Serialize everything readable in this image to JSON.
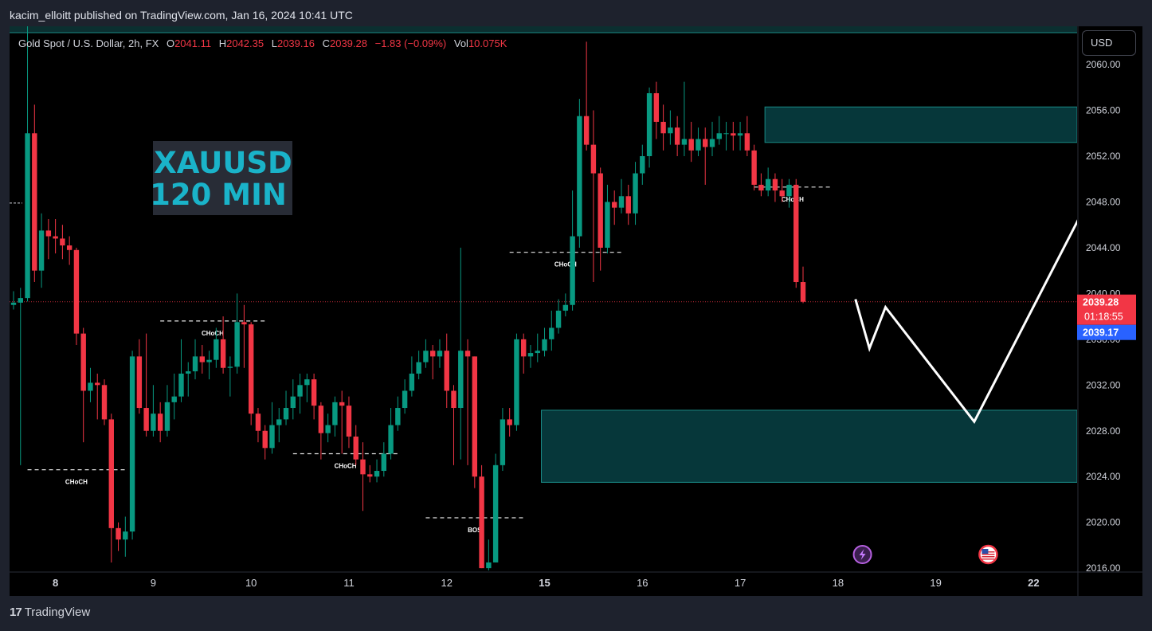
{
  "header": {
    "published_text": "kacim_elloitt published on TradingView.com, Jan 16, 2024 10:41 UTC"
  },
  "legend": {
    "symbol": "Gold Spot / U.S. Dollar, 2h, FX",
    "open_label": "O",
    "open": "2041.11",
    "high_label": "H",
    "high": "2042.35",
    "low_label": "L",
    "low": "2039.16",
    "close_label": "C",
    "close": "2039.28",
    "change": "−1.83 (−0.09%)",
    "vol_label": "Vol",
    "vol": "10.075K"
  },
  "currency_button": "USD",
  "footer": {
    "logo": "17",
    "brand": "TradingView"
  },
  "colors": {
    "up": "#089981",
    "down": "#f23645",
    "zone_fill": "#06373a",
    "zone_border": "#1a8b86",
    "title_text": "#1ab3c9"
  },
  "chart_data": {
    "type": "candlestick",
    "title": "XAUUSD",
    "subtitle": "120 MIN",
    "y_ticks": [
      "2060.00",
      "2056.00",
      "2052.00",
      "2048.00",
      "2044.00",
      "2040.00",
      "2036.00",
      "2032.00",
      "2028.00",
      "2024.00",
      "2020.00",
      "2016.00"
    ],
    "y_tick_values": [
      2060,
      2056,
      2052,
      2048,
      2044,
      2040,
      2036,
      2032,
      2028,
      2024,
      2020,
      2016
    ],
    "ylim": [
      2015.8,
      2063
    ],
    "x_ticks": [
      {
        "label": "8",
        "bold": true,
        "index": 6
      },
      {
        "label": "9",
        "bold": false,
        "index": 20
      },
      {
        "label": "10",
        "bold": false,
        "index": 34
      },
      {
        "label": "11",
        "bold": false,
        "index": 48
      },
      {
        "label": "12",
        "bold": false,
        "index": 62
      },
      {
        "label": "15",
        "bold": true,
        "index": 76
      },
      {
        "label": "16",
        "bold": false,
        "index": 90
      },
      {
        "label": "17",
        "bold": false,
        "index": 104
      },
      {
        "label": "18",
        "bold": false,
        "index": 118
      },
      {
        "label": "19",
        "bold": false,
        "index": 132
      },
      {
        "label": "22",
        "bold": true,
        "index": 146
      }
    ],
    "price_label": {
      "value": 2039.28,
      "text": "2039.28",
      "countdown": "01:18:55",
      "bid": "2039.17"
    },
    "candles": [
      [
        2039.0,
        2039.2,
        2040.2,
        2038.6
      ],
      [
        2039.2,
        2039.6,
        2040.5,
        2025.0
      ],
      [
        2039.6,
        2054.0,
        2066.0,
        2039.3
      ],
      [
        2054.0,
        2042.0,
        2056.5,
        2041.0
      ],
      [
        2042.0,
        2045.5,
        2047.0,
        2040.5
      ],
      [
        2045.5,
        2045.0,
        2046.5,
        2043.0
      ],
      [
        2045.0,
        2044.8,
        2046.5,
        2043.5
      ],
      [
        2044.8,
        2044.2,
        2046.0,
        2043.0
      ],
      [
        2044.2,
        2043.8,
        2045.0,
        2042.5
      ],
      [
        2043.8,
        2036.5,
        2044.0,
        2035.5
      ],
      [
        2036.5,
        2031.5,
        2037.0,
        2027.0
      ],
      [
        2031.5,
        2032.2,
        2033.5,
        2030.5
      ],
      [
        2032.2,
        2032.0,
        2033.0,
        2029.0
      ],
      [
        2032.0,
        2029.0,
        2032.5,
        2028.5
      ],
      [
        2029.0,
        2019.5,
        2029.5,
        2016.5
      ],
      [
        2019.5,
        2018.5,
        2020.0,
        2017.5
      ],
      [
        2018.5,
        2019.2,
        2020.5,
        2017.0
      ],
      [
        2019.2,
        2034.5,
        2035.0,
        2018.5
      ],
      [
        2034.5,
        2030.0,
        2036.0,
        2029.5
      ],
      [
        2030.0,
        2028.0,
        2036.5,
        2027.5
      ],
      [
        2028.0,
        2029.5,
        2032.0,
        2027.5
      ],
      [
        2029.5,
        2028.0,
        2030.5,
        2027.0
      ],
      [
        2028.0,
        2030.5,
        2032.0,
        2027.5
      ],
      [
        2030.5,
        2031.0,
        2033.0,
        2029.0
      ],
      [
        2031.0,
        2033.0,
        2036.0,
        2030.5
      ],
      [
        2033.0,
        2033.2,
        2034.0,
        2031.0
      ],
      [
        2033.2,
        2034.5,
        2036.0,
        2032.5
      ],
      [
        2034.5,
        2034.0,
        2035.5,
        2033.0
      ],
      [
        2034.0,
        2034.2,
        2035.0,
        2032.5
      ],
      [
        2034.2,
        2036.0,
        2037.0,
        2033.5
      ],
      [
        2036.0,
        2033.5,
        2038.0,
        2033.0
      ],
      [
        2033.5,
        2033.6,
        2034.5,
        2031.0
      ],
      [
        2033.6,
        2037.5,
        2040.0,
        2033.0
      ],
      [
        2037.5,
        2037.3,
        2039.0,
        2033.5
      ],
      [
        2037.3,
        2029.5,
        2037.5,
        2028.5
      ],
      [
        2029.5,
        2028.0,
        2030.0,
        2027.0
      ],
      [
        2028.0,
        2026.5,
        2028.5,
        2025.5
      ],
      [
        2026.5,
        2028.5,
        2030.5,
        2026.0
      ],
      [
        2028.5,
        2029.0,
        2030.0,
        2027.0
      ],
      [
        2029.0,
        2030.0,
        2031.5,
        2028.5
      ],
      [
        2030.0,
        2031.0,
        2032.5,
        2029.0
      ],
      [
        2031.0,
        2032.0,
        2033.0,
        2029.5
      ],
      [
        2032.0,
        2032.5,
        2033.0,
        2030.5
      ],
      [
        2032.5,
        2030.2,
        2033.0,
        2029.0
      ],
      [
        2030.2,
        2027.8,
        2030.5,
        2025.5
      ],
      [
        2027.8,
        2028.5,
        2029.5,
        2027.0
      ],
      [
        2028.5,
        2030.5,
        2031.0,
        2027.5
      ],
      [
        2030.5,
        2030.2,
        2031.5,
        2026.0
      ],
      [
        2030.2,
        2027.5,
        2031.0,
        2026.5
      ],
      [
        2027.5,
        2025.5,
        2028.5,
        2025.0
      ],
      [
        2025.5,
        2024.2,
        2027.0,
        2021.0
      ],
      [
        2024.2,
        2024.0,
        2025.0,
        2023.5
      ],
      [
        2024.0,
        2024.5,
        2025.5,
        2023.5
      ],
      [
        2024.5,
        2026.0,
        2027.0,
        2024.0
      ],
      [
        2026.0,
        2028.5,
        2030.0,
        2025.5
      ],
      [
        2028.5,
        2030.0,
        2031.0,
        2028.0
      ],
      [
        2030.0,
        2031.5,
        2032.5,
        2029.5
      ],
      [
        2031.5,
        2033.0,
        2034.5,
        2031.0
      ],
      [
        2033.0,
        2034.0,
        2035.0,
        2032.5
      ],
      [
        2034.0,
        2035.0,
        2036.0,
        2033.5
      ],
      [
        2035.0,
        2034.5,
        2035.5,
        2032.5
      ],
      [
        2034.5,
        2035.0,
        2036.0,
        2033.5
      ],
      [
        2035.0,
        2031.5,
        2036.5,
        2030.0
      ],
      [
        2031.5,
        2030.0,
        2032.0,
        2025.0
      ],
      [
        2030.0,
        2035.0,
        2044.0,
        2025.5
      ],
      [
        2035.0,
        2034.5,
        2036.0,
        2025.0
      ],
      [
        2034.5,
        2024.0,
        2034.5,
        2023.0
      ],
      [
        2024.0,
        2016.0,
        2025.0,
        2016.0
      ],
      [
        2016.0,
        2016.5,
        2018.5,
        2015.8
      ],
      [
        2016.5,
        2025.0,
        2026.0,
        2016.5
      ],
      [
        2025.0,
        2029.0,
        2030.0,
        2024.5
      ],
      [
        2029.0,
        2028.5,
        2030.0,
        2027.5
      ],
      [
        2028.5,
        2036.0,
        2036.5,
        2028.0
      ],
      [
        2036.0,
        2034.5,
        2036.5,
        2033.0
      ],
      [
        2034.5,
        2034.8,
        2035.5,
        2033.5
      ],
      [
        2034.8,
        2035.0,
        2036.5,
        2034.0
      ],
      [
        2035.0,
        2036.0,
        2037.0,
        2034.5
      ],
      [
        2036.0,
        2037.0,
        2038.5,
        2035.0
      ],
      [
        2037.0,
        2038.5,
        2039.5,
        2036.5
      ],
      [
        2038.5,
        2039.0,
        2040.0,
        2038.0
      ],
      [
        2039.0,
        2045.0,
        2049.0,
        2038.5
      ],
      [
        2045.0,
        2055.5,
        2057.0,
        2044.0
      ],
      [
        2055.5,
        2053.0,
        2062.0,
        2052.5
      ],
      [
        2053.0,
        2050.5,
        2056.0,
        2041.0
      ],
      [
        2050.5,
        2044.0,
        2051.0,
        2042.0
      ],
      [
        2044.0,
        2048.0,
        2049.5,
        2043.5
      ],
      [
        2048.0,
        2047.5,
        2049.0,
        2046.0
      ],
      [
        2047.5,
        2048.5,
        2050.0,
        2047.0
      ],
      [
        2048.5,
        2047.0,
        2049.5,
        2046.0
      ],
      [
        2047.0,
        2050.5,
        2051.5,
        2046.0
      ],
      [
        2050.5,
        2052.0,
        2053.0,
        2049.5
      ],
      [
        2052.0,
        2057.5,
        2058.0,
        2051.0
      ],
      [
        2057.5,
        2055.0,
        2058.5,
        2053.5
      ],
      [
        2055.0,
        2054.0,
        2056.5,
        2052.5
      ],
      [
        2054.0,
        2054.5,
        2056.0,
        2053.0
      ],
      [
        2054.5,
        2053.0,
        2055.5,
        2052.0
      ],
      [
        2053.0,
        2053.5,
        2058.5,
        2052.0
      ],
      [
        2053.5,
        2052.5,
        2055.0,
        2051.5
      ],
      [
        2052.5,
        2053.5,
        2054.5,
        2052.0
      ],
      [
        2053.5,
        2052.8,
        2054.5,
        2049.5
      ],
      [
        2052.8,
        2053.5,
        2055.0,
        2052.0
      ],
      [
        2053.5,
        2054.0,
        2055.5,
        2053.0
      ],
      [
        2054.0,
        2054.0,
        2055.0,
        2052.5
      ],
      [
        2054.0,
        2053.8,
        2055.0,
        2052.5
      ],
      [
        2053.8,
        2054.0,
        2055.0,
        2052.5
      ],
      [
        2054.0,
        2052.5,
        2055.5,
        2052.0
      ],
      [
        2052.5,
        2049.5,
        2053.0,
        2049.0
      ],
      [
        2049.5,
        2049.0,
        2050.5,
        2048.5
      ],
      [
        2049.0,
        2050.0,
        2051.0,
        2048.5
      ],
      [
        2050.0,
        2049.0,
        2050.5,
        2048.0
      ],
      [
        2049.0,
        2048.5,
        2050.0,
        2048.0
      ],
      [
        2048.5,
        2049.5,
        2050.0,
        2047.5
      ],
      [
        2049.5,
        2041.0,
        2050.0,
        2040.5
      ],
      [
        2041.0,
        2039.28,
        2042.35,
        2039.16
      ]
    ],
    "zones": [
      {
        "from_index": 108,
        "y_top": 2056.3,
        "y_bottom": 2053.2
      },
      {
        "from_index": 76,
        "y_top": 2029.8,
        "y_bottom": 2023.5
      }
    ],
    "structure_lines": [
      {
        "label": "CHoCH",
        "from_index": 2,
        "to_index": 16,
        "y": 2024.6
      },
      {
        "label": "CHoCH",
        "from_index": 21,
        "to_index": 36,
        "y": 2037.6
      },
      {
        "label": "CHoCH",
        "from_index": 40,
        "to_index": 55,
        "y": 2026.0
      },
      {
        "label": "BOS",
        "from_index": 59,
        "to_index": 73,
        "y": 2020.4
      },
      {
        "label": "CHoCH",
        "from_index": 71,
        "to_index": 87,
        "y": 2043.6
      },
      {
        "label": "CHoCH",
        "from_index": 106,
        "to_index": 117,
        "y": 2049.3
      }
    ],
    "projection_path": [
      {
        "index": 120.5,
        "y": 2039.5
      },
      {
        "index": 122.5,
        "y": 2035.2
      },
      {
        "index": 124.8,
        "y": 2038.8
      },
      {
        "index": 137.5,
        "y": 2028.8
      },
      {
        "index": 158.5,
        "y": 2053.7
      }
    ],
    "event_icons": [
      {
        "type": "lightning",
        "index": 121.5
      },
      {
        "type": "us-flag",
        "index": 139.5
      },
      {
        "type": "us-flag",
        "index": 156.5
      },
      {
        "type": "us-flag",
        "index": 174.5
      }
    ]
  }
}
